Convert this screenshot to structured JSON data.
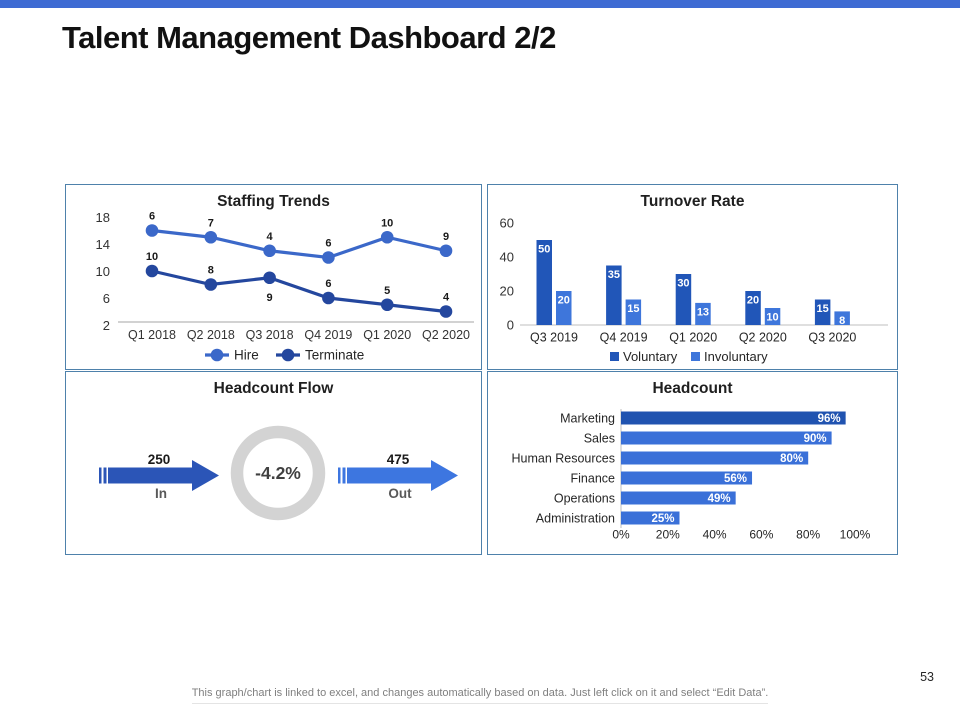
{
  "page": {
    "title": "Talent Management Dashboard 2/2",
    "page_number": "53",
    "footer_note": "This graph/chart is linked to excel, and changes automatically based on data. Just left click on it and select “Edit Data”.",
    "accent_bar_color": "#3E6BD3"
  },
  "chart_data": [
    {
      "id": "staffing_trends",
      "type": "line",
      "title": "Staffing Trends",
      "categories": [
        "Q1 2018",
        "Q2 2018",
        "Q3 2018",
        "Q4 2019",
        "Q1 2020",
        "Q2 2020"
      ],
      "series": [
        {
          "name": "Hire",
          "labels": [
            "6",
            "7",
            "4",
            "6",
            "10",
            "9"
          ],
          "plotted": [
            16,
            15,
            13,
            12,
            15,
            13
          ],
          "color": "#3B68C9",
          "label_side": [
            "above",
            "above",
            "above",
            "above",
            "above",
            "above"
          ]
        },
        {
          "name": "Terminate",
          "labels": [
            "10",
            "8",
            "9",
            "6",
            "5",
            "4"
          ],
          "plotted": [
            10,
            8,
            9,
            6,
            5,
            4
          ],
          "color": "#24479E",
          "label_side": [
            "above",
            "above",
            "below",
            "above",
            "above",
            "above"
          ]
        }
      ],
      "y_ticks": [
        18,
        14,
        10,
        6,
        2
      ],
      "ylim": [
        2,
        18
      ],
      "grid": false,
      "legend_position": "bottom"
    },
    {
      "id": "turnover_rate",
      "type": "bar",
      "title": "Turnover Rate",
      "categories": [
        "Q3 2019",
        "Q4 2019",
        "Q1 2020",
        "Q2 2020",
        "Q3 2020"
      ],
      "series": [
        {
          "name": "Voluntary",
          "values": [
            50,
            35,
            30,
            20,
            15
          ],
          "color": "#2156B8"
        },
        {
          "name": "Involuntary",
          "values": [
            20,
            15,
            13,
            10,
            8
          ],
          "color": "#3E76DB"
        }
      ],
      "y_ticks": [
        60,
        40,
        20,
        0
      ],
      "ylim": [
        0,
        60
      ],
      "grid": false,
      "legend_position": "bottom"
    },
    {
      "id": "headcount_flow",
      "type": "flow",
      "title": "Headcount Flow",
      "inflow": {
        "label": "In",
        "value": "250",
        "color": "#2B55B7"
      },
      "outflow": {
        "label": "Out",
        "value": "475",
        "color": "#3D76E0"
      },
      "center": {
        "value": "-4.2%",
        "ring_color": "#D3D3D3"
      }
    },
    {
      "id": "headcount",
      "type": "hbar",
      "title": "Headcount",
      "categories": [
        "Marketing",
        "Sales",
        "Human Resources",
        "Finance",
        "Operations",
        "Administration"
      ],
      "values": [
        96,
        90,
        80,
        56,
        49,
        25
      ],
      "labels": [
        "96%",
        "90%",
        "80%",
        "56%",
        "49%",
        "25%"
      ],
      "bar_colors": [
        "#2053B0",
        "#3A70D8",
        "#3A70D8",
        "#3A70D8",
        "#3A70D8",
        "#3A70D8"
      ],
      "x_ticks": [
        "0%",
        "20%",
        "40%",
        "60%",
        "80%",
        "100%"
      ],
      "xlim": [
        0,
        100
      ]
    }
  ]
}
